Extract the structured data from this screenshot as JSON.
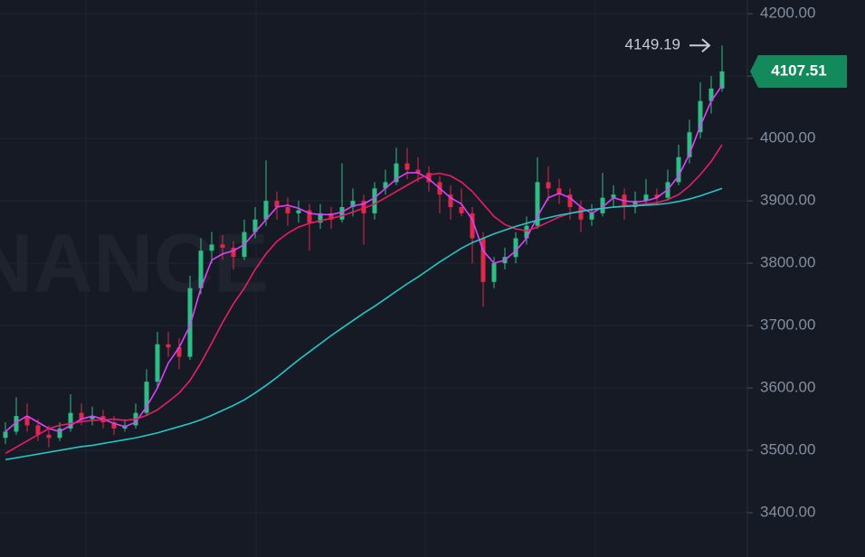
{
  "watermark": "NANCE",
  "chart_data": {
    "type": "candlestick",
    "ylim": [
      3329,
      4222
    ],
    "yticks": [
      {
        "value": 3400,
        "label": "3400.00"
      },
      {
        "value": 3500,
        "label": "3500.00"
      },
      {
        "value": 3600,
        "label": "3600.00"
      },
      {
        "value": 3700,
        "label": "3700.00"
      },
      {
        "value": 3800,
        "label": "3800.00"
      },
      {
        "value": 3900,
        "label": "3900.00"
      },
      {
        "value": 4000,
        "label": "4000.00"
      },
      {
        "value": 4100,
        "label": "4100.00"
      },
      {
        "value": 4200,
        "label": "4200.00"
      }
    ],
    "grid": true,
    "up_color": "#2ebd85",
    "down_color": "#e0294a",
    "last_price": 4107.51,
    "last_price_color": "#138a5c",
    "high_price": 4149.19,
    "candles": [
      [
        3520,
        3545,
        3510,
        3530
      ],
      [
        3530,
        3585,
        3525,
        3555
      ],
      [
        3555,
        3575,
        3530,
        3540
      ],
      [
        3540,
        3550,
        3515,
        3525
      ],
      [
        3525,
        3540,
        3505,
        3520
      ],
      [
        3520,
        3545,
        3515,
        3535
      ],
      [
        3535,
        3590,
        3530,
        3560
      ],
      [
        3560,
        3575,
        3540,
        3550
      ],
      [
        3550,
        3570,
        3540,
        3555
      ],
      [
        3555,
        3565,
        3535,
        3545
      ],
      [
        3545,
        3555,
        3525,
        3535
      ],
      [
        3535,
        3550,
        3530,
        3540
      ],
      [
        3540,
        3575,
        3535,
        3560
      ],
      [
        3560,
        3630,
        3555,
        3610
      ],
      [
        3610,
        3690,
        3600,
        3670
      ],
      [
        3670,
        3690,
        3650,
        3665
      ],
      [
        3665,
        3680,
        3630,
        3650
      ],
      [
        3650,
        3780,
        3645,
        3760
      ],
      [
        3760,
        3840,
        3750,
        3820
      ],
      [
        3820,
        3850,
        3800,
        3830
      ],
      [
        3830,
        3845,
        3805,
        3825
      ],
      [
        3825,
        3835,
        3790,
        3810
      ],
      [
        3810,
        3870,
        3805,
        3850
      ],
      [
        3850,
        3890,
        3840,
        3870
      ],
      [
        3870,
        3965,
        3860,
        3900
      ],
      [
        3900,
        3915,
        3870,
        3890
      ],
      [
        3890,
        3905,
        3860,
        3880
      ],
      [
        3880,
        3900,
        3865,
        3885
      ],
      [
        3885,
        3895,
        3820,
        3865
      ],
      [
        3865,
        3895,
        3855,
        3880
      ],
      [
        3880,
        3890,
        3855,
        3870
      ],
      [
        3870,
        3960,
        3865,
        3890
      ],
      [
        3890,
        3920,
        3875,
        3900
      ],
      [
        3900,
        3910,
        3830,
        3880
      ],
      [
        3880,
        3930,
        3870,
        3920
      ],
      [
        3920,
        3950,
        3910,
        3930
      ],
      [
        3930,
        3985,
        3925,
        3960
      ],
      [
        3960,
        3985,
        3935,
        3950
      ],
      [
        3950,
        3970,
        3930,
        3945
      ],
      [
        3945,
        3955,
        3915,
        3930
      ],
      [
        3930,
        3940,
        3880,
        3910
      ],
      [
        3910,
        3925,
        3870,
        3890
      ],
      [
        3890,
        3920,
        3875,
        3880
      ],
      [
        3880,
        3890,
        3800,
        3840
      ],
      [
        3840,
        3850,
        3730,
        3770
      ],
      [
        3770,
        3810,
        3760,
        3800
      ],
      [
        3800,
        3825,
        3790,
        3810
      ],
      [
        3810,
        3850,
        3800,
        3840
      ],
      [
        3840,
        3875,
        3830,
        3860
      ],
      [
        3860,
        3970,
        3855,
        3930
      ],
      [
        3930,
        3955,
        3900,
        3920
      ],
      [
        3920,
        3935,
        3895,
        3910
      ],
      [
        3910,
        3920,
        3870,
        3890
      ],
      [
        3890,
        3900,
        3850,
        3870
      ],
      [
        3870,
        3895,
        3860,
        3880
      ],
      [
        3880,
        3945,
        3875,
        3905
      ],
      [
        3905,
        3925,
        3890,
        3910
      ],
      [
        3910,
        3920,
        3870,
        3890
      ],
      [
        3890,
        3915,
        3880,
        3900
      ],
      [
        3900,
        3935,
        3895,
        3910
      ],
      [
        3910,
        3920,
        3895,
        3905
      ],
      [
        3905,
        3950,
        3900,
        3930
      ],
      [
        3930,
        3990,
        3925,
        3970
      ],
      [
        3970,
        4030,
        3960,
        4010
      ],
      [
        4010,
        4090,
        4000,
        4060
      ],
      [
        4060,
        4100,
        4040,
        4080
      ],
      [
        4080,
        4149.19,
        4075,
        4107.51
      ]
    ],
    "lines": [
      {
        "color": "#e040fb",
        "values": [
          3530,
          3545,
          3555,
          3545,
          3535,
          3530,
          3540,
          3550,
          3555,
          3550,
          3543,
          3538,
          3545,
          3570,
          3600,
          3640,
          3665,
          3700,
          3760,
          3805,
          3815,
          3820,
          3830,
          3850,
          3870,
          3890,
          3893,
          3888,
          3880,
          3878,
          3878,
          3882,
          3892,
          3895,
          3905,
          3920,
          3935,
          3945,
          3945,
          3935,
          3920,
          3905,
          3895,
          3870,
          3820,
          3800,
          3805,
          3820,
          3840,
          3875,
          3905,
          3912,
          3905,
          3890,
          3880,
          3890,
          3905,
          3900,
          3898,
          3900,
          3905,
          3918,
          3940,
          3975,
          4020,
          4060,
          4085
        ]
      },
      {
        "color": "#e91e63",
        "values": [
          3495,
          3505,
          3515,
          3525,
          3535,
          3540,
          3543,
          3546,
          3548,
          3549,
          3550,
          3548,
          3550,
          3556,
          3565,
          3578,
          3592,
          3612,
          3640,
          3672,
          3705,
          3735,
          3760,
          3790,
          3815,
          3835,
          3848,
          3858,
          3864,
          3868,
          3872,
          3876,
          3882,
          3888,
          3895,
          3905,
          3915,
          3925,
          3935,
          3942,
          3944,
          3940,
          3930,
          3915,
          3895,
          3875,
          3862,
          3855,
          3852,
          3858,
          3866,
          3874,
          3880,
          3884,
          3886,
          3888,
          3890,
          3892,
          3893,
          3895,
          3897,
          3902,
          3910,
          3924,
          3942,
          3963,
          3990
        ]
      },
      {
        "color": "#26c6c6",
        "values": [
          3485,
          3488,
          3491,
          3494,
          3497,
          3500,
          3503,
          3506,
          3508,
          3511,
          3514,
          3517,
          3520,
          3524,
          3528,
          3533,
          3538,
          3543,
          3549,
          3556,
          3564,
          3572,
          3581,
          3592,
          3604,
          3617,
          3631,
          3645,
          3658,
          3671,
          3684,
          3696,
          3708,
          3720,
          3731,
          3743,
          3755,
          3767,
          3778,
          3790,
          3802,
          3813,
          3824,
          3833,
          3840,
          3847,
          3853,
          3859,
          3864,
          3869,
          3873,
          3877,
          3880,
          3883,
          3886,
          3888,
          3890,
          3891,
          3892,
          3893,
          3894,
          3896,
          3899,
          3903,
          3908,
          3914,
          3920
        ]
      }
    ]
  }
}
